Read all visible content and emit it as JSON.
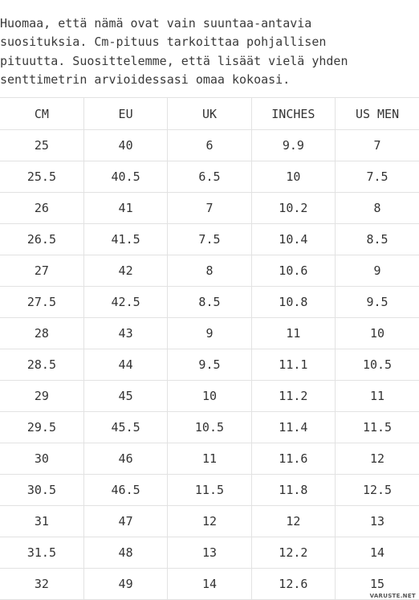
{
  "note": {
    "lines": [
      "Huomaa, että nämä ovat vain suuntaa-antavia",
      "suosituksia. Cm-pituus tarkoittaa pohjallisen",
      "pituutta. Suosittelemme, että lisäät vielä yhden",
      "senttimetrin arvioidessasi omaa kokoasi."
    ]
  },
  "size_table": {
    "headers": [
      "CM",
      "EU",
      "UK",
      "INCHES",
      "US MEN"
    ],
    "rows": [
      [
        "25",
        "40",
        "6",
        "9.9",
        "7"
      ],
      [
        "25.5",
        "40.5",
        "6.5",
        "10",
        "7.5"
      ],
      [
        "26",
        "41",
        "7",
        "10.2",
        "8"
      ],
      [
        "26.5",
        "41.5",
        "7.5",
        "10.4",
        "8.5"
      ],
      [
        "27",
        "42",
        "8",
        "10.6",
        "9"
      ],
      [
        "27.5",
        "42.5",
        "8.5",
        "10.8",
        "9.5"
      ],
      [
        "28",
        "43",
        "9",
        "11",
        "10"
      ],
      [
        "28.5",
        "44",
        "9.5",
        "11.1",
        "10.5"
      ],
      [
        "29",
        "45",
        "10",
        "11.2",
        "11"
      ],
      [
        "29.5",
        "45.5",
        "10.5",
        "11.4",
        "11.5"
      ],
      [
        "30",
        "46",
        "11",
        "11.6",
        "12"
      ],
      [
        "30.5",
        "46.5",
        "11.5",
        "11.8",
        "12.5"
      ],
      [
        "31",
        "47",
        "12",
        "12",
        "13"
      ],
      [
        "31.5",
        "48",
        "13",
        "12.2",
        "14"
      ],
      [
        "32",
        "49",
        "14",
        "12.6",
        "15"
      ]
    ]
  },
  "watermark": "VARUSTE.NET"
}
